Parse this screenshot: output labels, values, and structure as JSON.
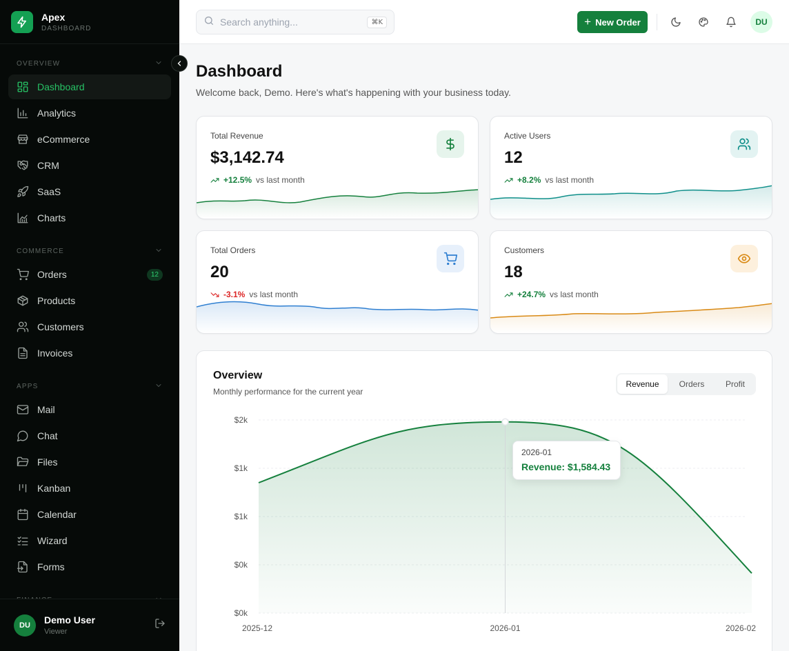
{
  "brand": {
    "name": "Apex",
    "subtitle": "DASHBOARD"
  },
  "sidebar": {
    "sections": [
      {
        "label": "OVERVIEW",
        "items": [
          {
            "label": "Dashboard",
            "icon": "layout-grid-icon",
            "active": true
          },
          {
            "label": "Analytics",
            "icon": "bar-chart-icon"
          },
          {
            "label": "eCommerce",
            "icon": "store-icon"
          },
          {
            "label": "CRM",
            "icon": "handshake-icon"
          },
          {
            "label": "SaaS",
            "icon": "rocket-icon"
          },
          {
            "label": "Charts",
            "icon": "line-chart-icon"
          }
        ]
      },
      {
        "label": "COMMERCE",
        "items": [
          {
            "label": "Orders",
            "icon": "cart-icon",
            "badge": "12"
          },
          {
            "label": "Products",
            "icon": "package-icon"
          },
          {
            "label": "Customers",
            "icon": "users-icon"
          },
          {
            "label": "Invoices",
            "icon": "file-icon"
          }
        ]
      },
      {
        "label": "APPS",
        "items": [
          {
            "label": "Mail",
            "icon": "mail-icon"
          },
          {
            "label": "Chat",
            "icon": "chat-icon"
          },
          {
            "label": "Files",
            "icon": "folder-icon"
          },
          {
            "label": "Kanban",
            "icon": "kanban-icon"
          },
          {
            "label": "Calendar",
            "icon": "calendar-icon"
          },
          {
            "label": "Wizard",
            "icon": "list-checks-icon"
          },
          {
            "label": "Forms",
            "icon": "form-icon"
          }
        ]
      },
      {
        "label": "FINANCE",
        "items": []
      }
    ]
  },
  "user": {
    "initials": "DU",
    "name": "Demo User",
    "role": "Viewer"
  },
  "topbar": {
    "search_placeholder": "Search anything...",
    "shortcut": "⌘K",
    "new_order_label": "New Order",
    "avatar_initials": "DU"
  },
  "page": {
    "title": "Dashboard",
    "subtitle": "Welcome back, Demo. Here's what's happening with your business today."
  },
  "stats": [
    {
      "label": "Total Revenue",
      "value": "$3,142.74",
      "change": "+12.5%",
      "trend": "up",
      "vs": "vs last month",
      "icon": "dollar-icon",
      "color": "#15803d"
    },
    {
      "label": "Active Users",
      "value": "12",
      "change": "+8.2%",
      "trend": "up",
      "vs": "vs last month",
      "icon": "users-icon",
      "color": "#0f8f8a"
    },
    {
      "label": "Total Orders",
      "value": "20",
      "change": "-3.1%",
      "trend": "down",
      "vs": "vs last month",
      "icon": "cart-icon",
      "color": "#2f7fd1"
    },
    {
      "label": "Customers",
      "value": "18",
      "change": "+24.7%",
      "trend": "up",
      "vs": "vs last month",
      "icon": "eye-icon",
      "color": "#d98a16"
    }
  ],
  "overview": {
    "title": "Overview",
    "subtitle": "Monthly performance for the current year",
    "tabs": [
      "Revenue",
      "Orders",
      "Profit"
    ],
    "active_tab": "Revenue",
    "tooltip": {
      "label": "2026-01",
      "value": "Revenue: $1,584.43"
    }
  },
  "chart_data": {
    "type": "area",
    "x": [
      "2025-12",
      "2026-01",
      "2026-02"
    ],
    "series": [
      {
        "name": "Revenue",
        "values": [
          1080,
          1584.43,
          330
        ]
      }
    ],
    "y_tick_labels": [
      "$2k",
      "$1k",
      "$1k",
      "$0k",
      "$0k"
    ],
    "ylim": [
      0,
      1600
    ],
    "grid": true,
    "color": "#15803d"
  }
}
